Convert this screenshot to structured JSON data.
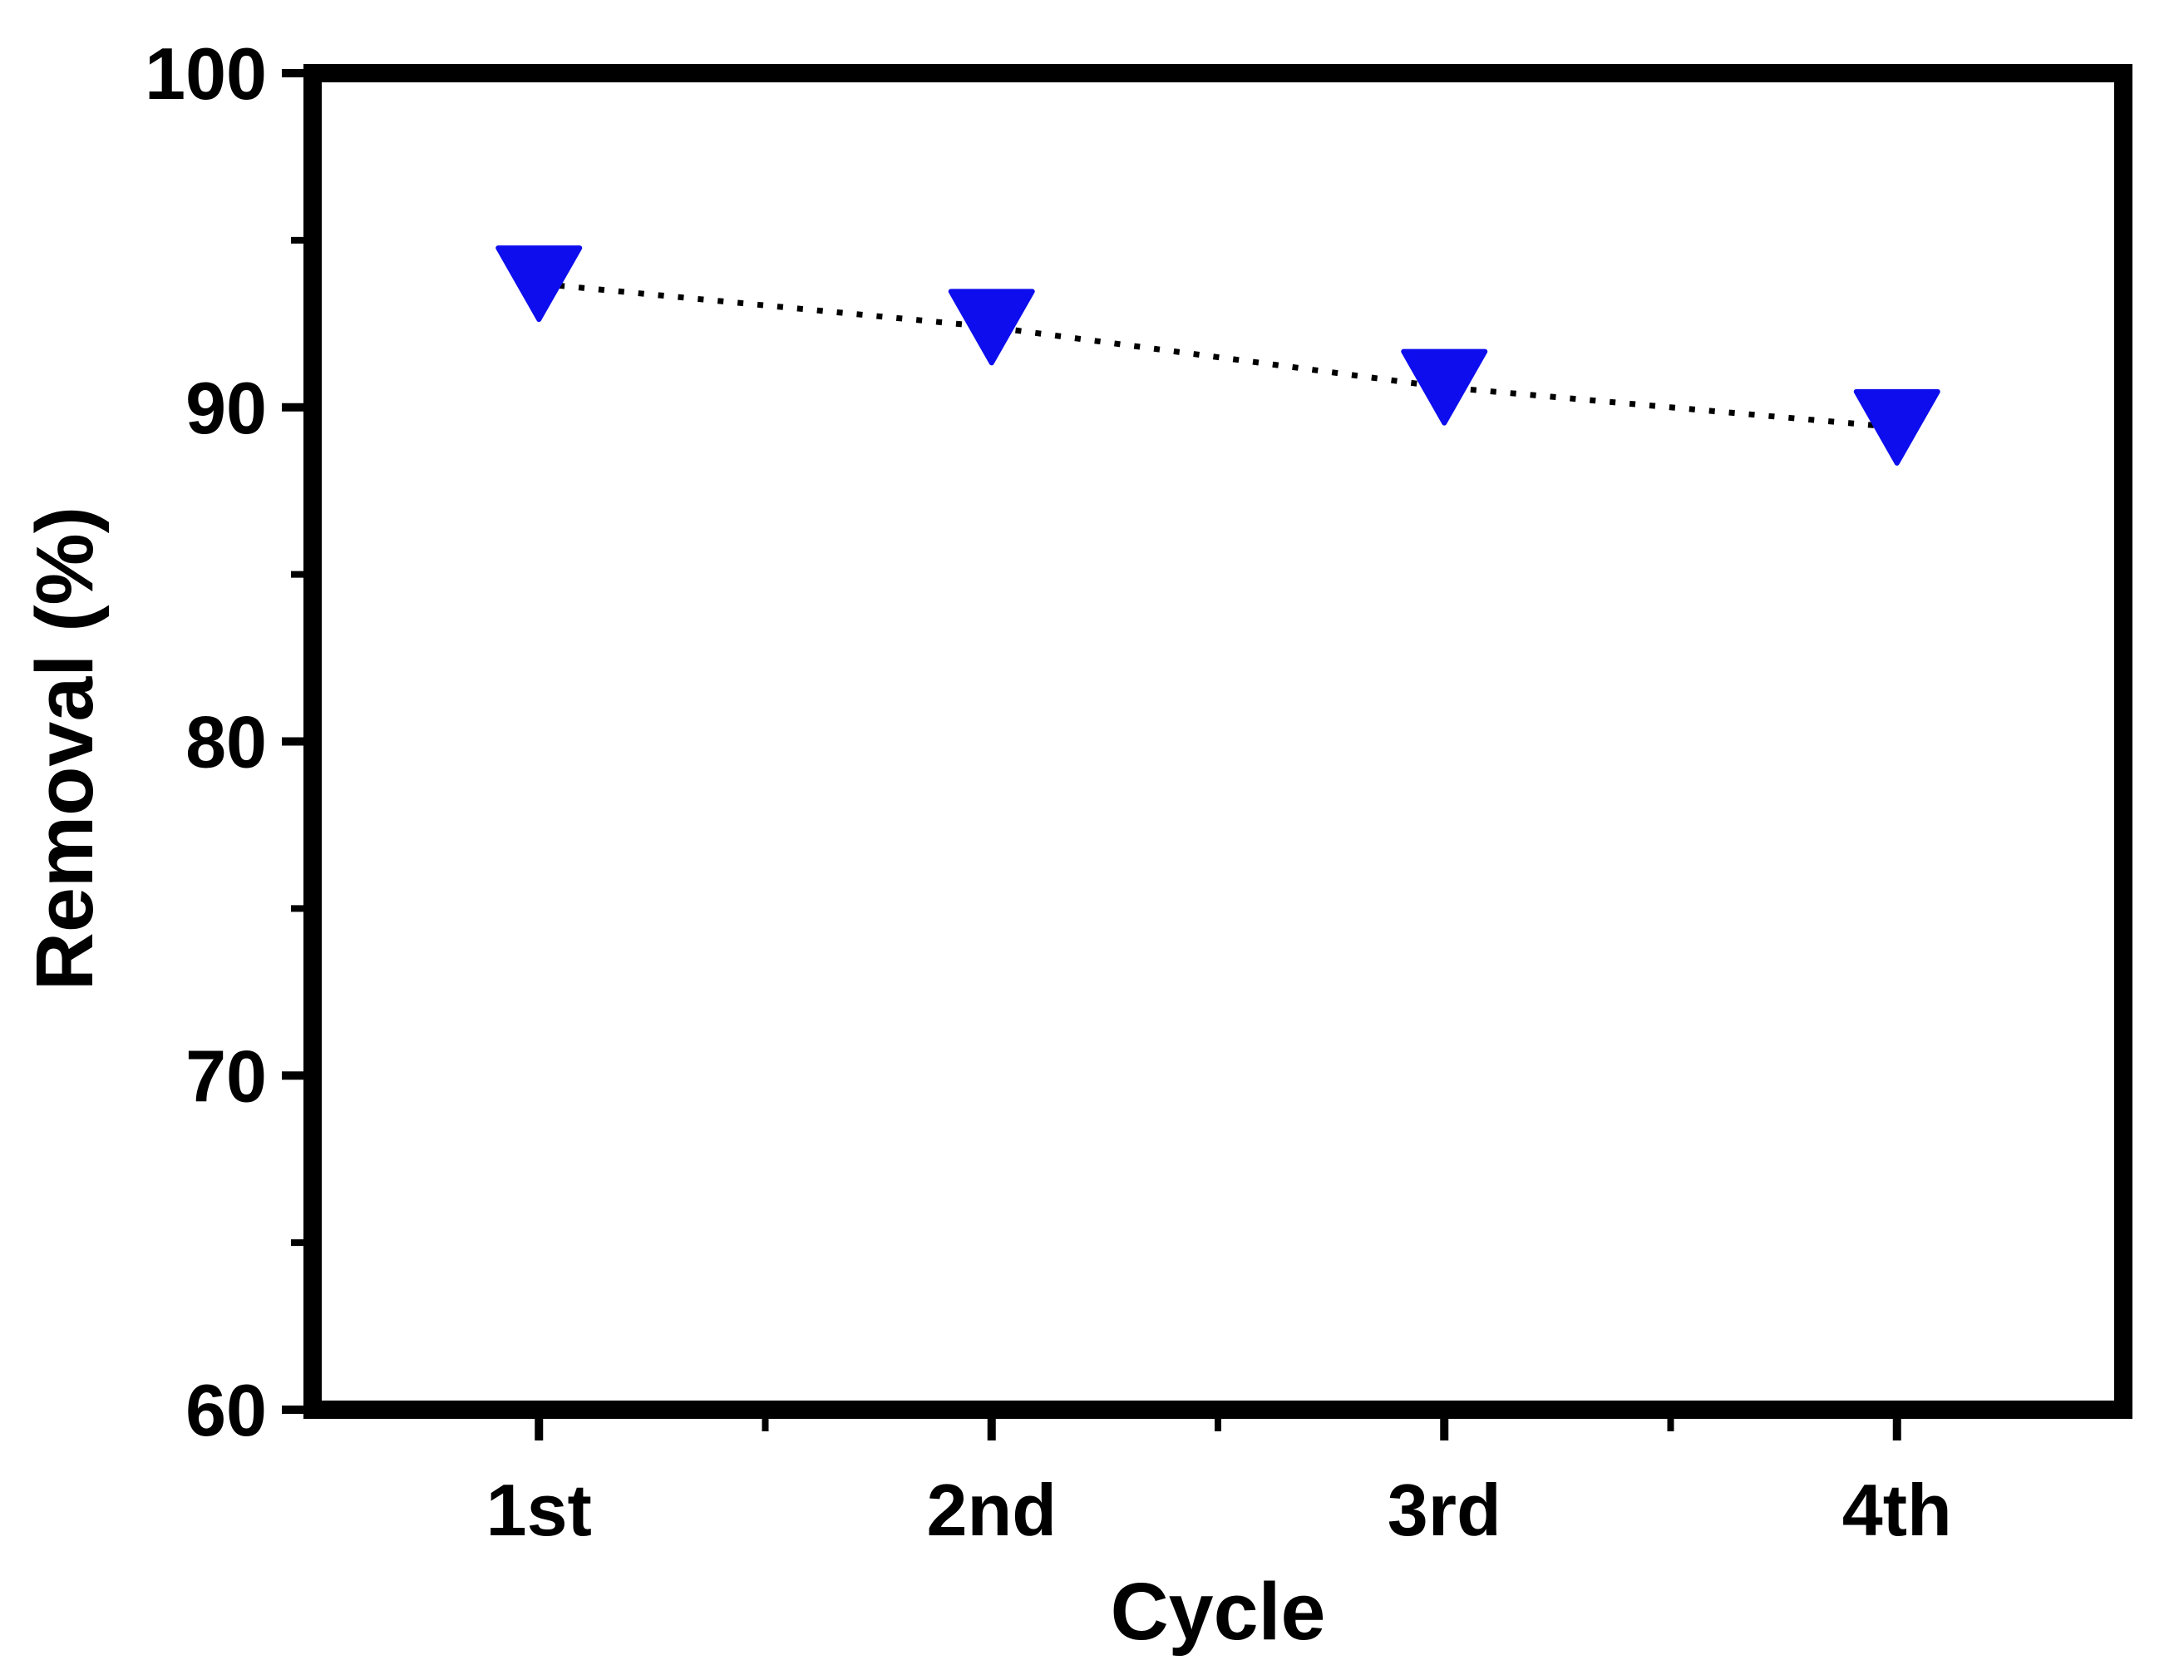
{
  "figure": {
    "background": "#ffffff",
    "frame_color": "#000000"
  },
  "chart_data": {
    "type": "line",
    "subtype": "scatter-with-dotted-line",
    "categories": [
      "1st",
      "2nd",
      "3rd",
      "4th"
    ],
    "values": [
      93.7,
      92.4,
      90.6,
      89.4
    ],
    "title": "",
    "xlabel": "Cycle",
    "ylabel": "Removal (%)",
    "ylim": [
      60,
      100
    ],
    "ytick_major": [
      100,
      90,
      80,
      70,
      60
    ],
    "ytick_minor": [
      95,
      85,
      75,
      65
    ],
    "grid": false,
    "legend_position": "none",
    "marker": {
      "shape": "triangle-down",
      "color": "#0d0dee",
      "half_width": 49,
      "half_height": 43
    },
    "line": {
      "style": "dotted",
      "color": "#000000",
      "width": 7,
      "dash": "7 17"
    }
  }
}
